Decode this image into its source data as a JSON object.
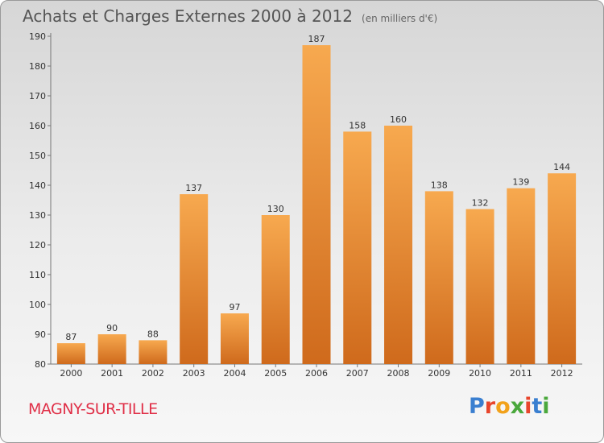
{
  "header": {
    "title": "Achats et Charges Externes 2000 à 2012",
    "subtitle": "(en milliers d'€)"
  },
  "footer": {
    "city": "MAGNY-SUR-TILLE",
    "brand": "Proxiti"
  },
  "colors": {
    "bar_light": "#f7a94f",
    "bar_dark": "#cf6a1c",
    "city_text": "#e03048",
    "logo_letters": [
      "#3a7fd0",
      "#e8452c",
      "#f2a21b",
      "#4aa83c",
      "#e8452c",
      "#3a7fd0",
      "#4aa83c"
    ]
  },
  "chart_data": {
    "type": "bar",
    "title": "Achats et Charges Externes 2000 à 2012",
    "subtitle": "(en milliers d'€)",
    "xlabel": "",
    "ylabel": "",
    "categories": [
      "2000",
      "2001",
      "2002",
      "2003",
      "2004",
      "2005",
      "2006",
      "2007",
      "2008",
      "2009",
      "2010",
      "2011",
      "2012"
    ],
    "values": [
      87,
      90,
      88,
      137,
      97,
      130,
      187,
      158,
      160,
      138,
      132,
      139,
      144
    ],
    "ylim": [
      80,
      190
    ],
    "yticks": [
      80,
      90,
      100,
      110,
      120,
      130,
      140,
      150,
      160,
      170,
      180,
      190
    ],
    "grid": false,
    "legend": "none"
  }
}
